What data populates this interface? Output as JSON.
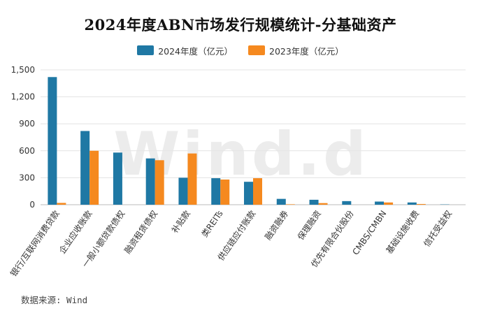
{
  "chart_data": {
    "type": "bar",
    "title": "2024年度ABN市场发行规模统计-分基础资产",
    "categories": [
      "银行/互联网消费贷款",
      "企业应收账款",
      "一般小额贷款债权",
      "融资租赁债权",
      "补贴款",
      "类REITs",
      "供应链应付账款",
      "融资融券",
      "保理融资",
      "优先有限合伙股份",
      "CMBS/CMBN",
      "基础设施收费",
      "信托受益权"
    ],
    "series": [
      {
        "name": "2024年度（亿元）",
        "color": "#1f78a4",
        "values": [
          1420,
          820,
          580,
          515,
          300,
          295,
          255,
          65,
          55,
          40,
          35,
          25,
          3
        ]
      },
      {
        "name": "2023年度（亿元）",
        "color": "#f5891f",
        "values": [
          20,
          600,
          0,
          495,
          570,
          280,
          295,
          5,
          18,
          0,
          25,
          8,
          0
        ]
      }
    ],
    "ylim": [
      0,
      1500
    ],
    "yticks": [
      0,
      300,
      600,
      900,
      1200,
      1500
    ],
    "ytick_labels": [
      "0",
      "300",
      "600",
      "900",
      "1,200",
      "1,500"
    ],
    "grid": true,
    "legend": "top-center"
  },
  "watermark": "Wind.d",
  "source": "数据来源: Wind"
}
